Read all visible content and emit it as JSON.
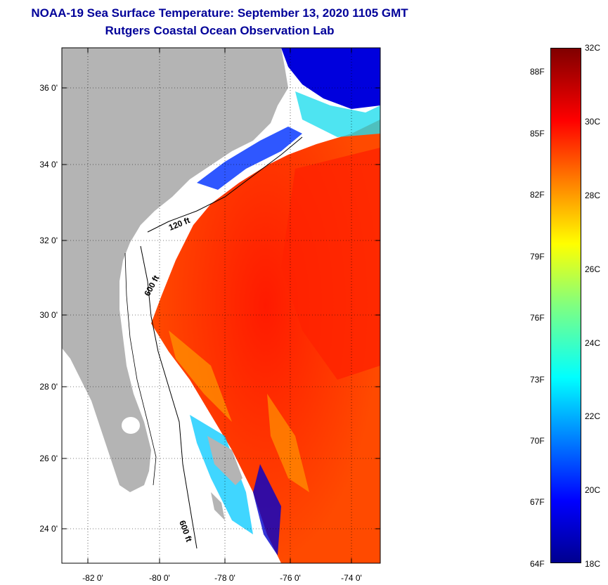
{
  "title": {
    "line1": "NOAA-19 Sea Surface Temperature:  September 13, 2020 1105 GMT",
    "line2": "Rutgers Coastal Ocean Observation Lab"
  },
  "map": {
    "lat_ticks": [
      "36 0'",
      "34 0'",
      "32 0'",
      "30 0'",
      "28 0'",
      "26 0'",
      "24 0'"
    ],
    "lon_ticks": [
      "-82 0'",
      "-80 0'",
      "-78 0'",
      "-76 0'",
      "-74 0'"
    ],
    "contour_labels": [
      "120 ft",
      "600 ft",
      "600 ft"
    ],
    "colors": {
      "land": "#b4b4b4",
      "no_data": "#ffffff",
      "warm": "#ff3300",
      "hot": "#ff1a00",
      "cool": "#00c8ff",
      "cold": "#0000cc"
    }
  },
  "colorbar": {
    "colormap": "jet",
    "celsius_labels": [
      "32C",
      "30C",
      "28C",
      "26C",
      "24C",
      "22C",
      "20C",
      "18C"
    ],
    "fahrenheit_labels": [
      "88F",
      "85F",
      "82F",
      "79F",
      "76F",
      "73F",
      "70F",
      "67F",
      "64F"
    ],
    "range_c": [
      18,
      32
    ]
  }
}
